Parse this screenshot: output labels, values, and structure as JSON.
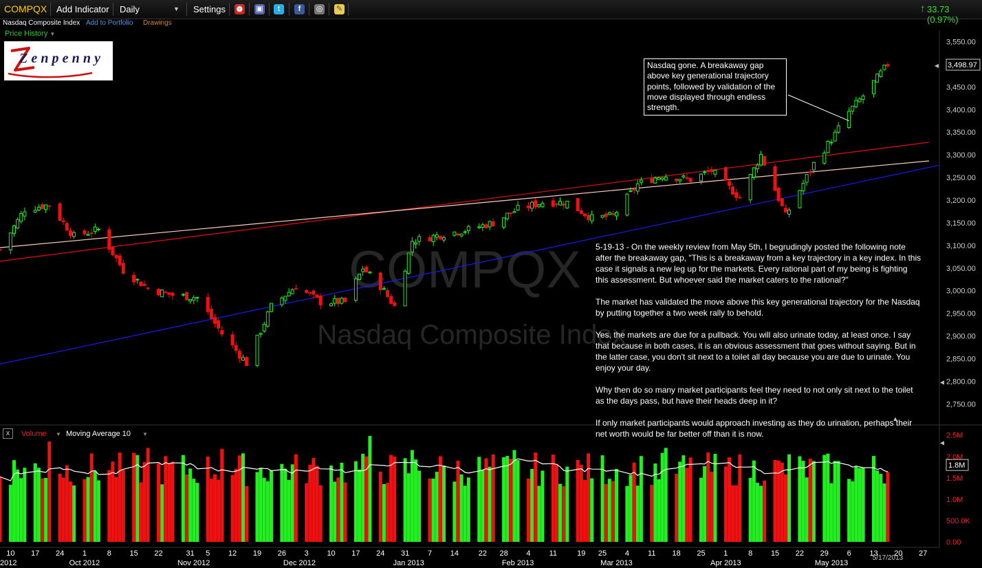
{
  "toolbar": {
    "symbol": "COMPQX",
    "add_indicator": "Add Indicator",
    "period": "Daily",
    "settings": "Settings",
    "change": "33.73 (0.97%)",
    "up_color": "#33dd33"
  },
  "symbol_bar": {
    "name": "Nasdaq Composite Index",
    "add_to_portfolio": "Add to Portfolio",
    "drawings": "Drawings",
    "price_history": "Price History"
  },
  "logo": {
    "text": "Zenpenny"
  },
  "watermark": {
    "symbol": "COMPQX",
    "name": "Nasdaq Composite Index"
  },
  "price_note": "Nasdaq gone. A breakaway gap above key generational trajectory points, followed by validation of the move displayed through endless strength.",
  "commentary": [
    "5-19-13 - On the weekly review from May 5th, I begrudingly posted the following note after the breakaway gap, \"This is a breakaway from a key trajectory in a key index. In this case it signals a new leg up for the markets. Every rational part of my being is fighting this assessment. But whoever said the market caters to the rational?\"",
    "The market has validated the move above this key generational trajectory for the Nasdaq by putting together a two week rally to behold.",
    "Yes, the markets are due for a pullback. You will also urinate today, at least once. I say that because in both cases, it is an obvious assessment that goes without saying. But in the latter case, you don't sit next to a toilet all day because you are due to urinate. You enjoy your day.",
    "Why then do so many market participants feel they need to not only sit next to the toilet as the days pass, but have their heads deep in it?",
    "If only market participants would approach investing as they do urination, perhaps their net worth would be far better off than it is now."
  ],
  "volume_header": {
    "close_label": "x",
    "volume_label": "Volume",
    "ma_label": "Moving Average 10"
  },
  "colors": {
    "up": "#22ee22",
    "down": "#ee1111",
    "trend_red": "#dd1111",
    "trend_pink": "#ffd0c0",
    "trend_blue": "#1a1aee",
    "axis_text": "#cccccc"
  },
  "chart_data": [
    {
      "type": "candlestick",
      "title": "COMPQX",
      "series_name": "Nasdaq Composite Index",
      "period": "Daily",
      "ylim": [
        2705,
        3575
      ],
      "y_ticks": [
        2750,
        2800,
        2850,
        2900,
        2950,
        3000,
        3050,
        3100,
        3150,
        3200,
        3250,
        3300,
        3350,
        3400,
        3450,
        3500,
        3550
      ],
      "y_tick_labels": [
        "2,750.00",
        "2,800.00",
        "2,850.00",
        "2,900.00",
        "2,950.00",
        "3,000.00",
        "3,050.00",
        "3,100.00",
        "3,150.00",
        "3,200.00",
        "3,250.00",
        "3,300.00",
        "3,350.00",
        "3,400.00",
        "3,450.00",
        "",
        "3,550.00"
      ],
      "last_price_label": "3,498.97",
      "last_price": 3498.97,
      "date_range": [
        "2012-09-07",
        "2013-05-17"
      ],
      "last_date_label": "5/17/2013",
      "x_axis": {
        "day_labels": [
          "10",
          "17",
          "24",
          "1",
          "8",
          "15",
          "22",
          "31",
          "5",
          "12",
          "19",
          "26",
          "3",
          "10",
          "17",
          "24",
          "31",
          "7",
          "14",
          "22",
          "28",
          "4",
          "11",
          "19",
          "25",
          "4",
          "11",
          "18",
          "25",
          "1",
          "8",
          "15",
          "22",
          "29",
          "6",
          "13",
          "20",
          "27"
        ],
        "day_dates": [
          "2012-09-10",
          "2012-09-17",
          "2012-09-24",
          "2012-10-01",
          "2012-10-08",
          "2012-10-15",
          "2012-10-22",
          "2012-10-31",
          "2012-11-05",
          "2012-11-12",
          "2012-11-19",
          "2012-11-26",
          "2012-12-03",
          "2012-12-10",
          "2012-12-17",
          "2012-12-24",
          "2012-12-31",
          "2013-01-07",
          "2013-01-14",
          "2013-01-22",
          "2013-01-28",
          "2013-02-04",
          "2013-02-11",
          "2013-02-19",
          "2013-02-25",
          "2013-03-04",
          "2013-03-11",
          "2013-03-18",
          "2013-03-25",
          "2013-04-01",
          "2013-04-08",
          "2013-04-15",
          "2013-04-22",
          "2013-04-29",
          "2013-05-06",
          "2013-05-13",
          "2013-05-20",
          "2013-05-27"
        ],
        "month_labels": [
          "2012",
          "Oct 2012",
          "Nov 2012",
          "Dec 2012",
          "Jan 2013",
          "Feb 2013",
          "Mar 2013",
          "Apr 2013",
          "May 2013"
        ],
        "month_dates": [
          "2012-09-07",
          "2012-10-01",
          "2012-11-01",
          "2012-12-01",
          "2013-01-01",
          "2013-02-01",
          "2013-03-01",
          "2013-04-01",
          "2013-05-01"
        ]
      },
      "trendlines": [
        {
          "name": "red",
          "color": "#dd1111",
          "points": [
            [
              "2012-09-07",
              3065
            ],
            [
              "2013-05-17",
              3316
            ]
          ]
        },
        {
          "name": "pink",
          "color": "#ffd0c0",
          "points": [
            [
              "2012-09-07",
              3095
            ],
            [
              "2013-05-17",
              3278
            ]
          ]
        },
        {
          "name": "blue",
          "color": "#1a1aee",
          "points": [
            [
              "2012-09-07",
              2838
            ],
            [
              "2013-05-17",
              3253
            ]
          ]
        }
      ],
      "anchors": [
        [
          "2012-09-07",
          3090
        ],
        [
          "2012-09-14",
          3180
        ],
        [
          "2012-09-21",
          3190
        ],
        [
          "2012-09-28",
          3120
        ],
        [
          "2012-10-05",
          3135
        ],
        [
          "2012-10-12",
          3045
        ],
        [
          "2012-10-19",
          3005
        ],
        [
          "2012-10-26",
          2990
        ],
        [
          "2012-11-02",
          2985
        ],
        [
          "2012-11-09",
          2905
        ],
        [
          "2012-11-16",
          2840
        ],
        [
          "2012-11-23",
          2965
        ],
        [
          "2012-11-30",
          3010
        ],
        [
          "2012-12-07",
          2975
        ],
        [
          "2012-12-14",
          2975
        ],
        [
          "2012-12-19",
          3050
        ],
        [
          "2012-12-24",
          3010
        ],
        [
          "2012-12-28",
          2965
        ],
        [
          "2013-01-02",
          3110
        ],
        [
          "2013-01-11",
          3125
        ],
        [
          "2013-01-18",
          3135
        ],
        [
          "2013-01-25",
          3150
        ],
        [
          "2013-02-01",
          3180
        ],
        [
          "2013-02-08",
          3195
        ],
        [
          "2013-02-15",
          3195
        ],
        [
          "2013-02-22",
          3160
        ],
        [
          "2013-02-28",
          3165
        ],
        [
          "2013-03-07",
          3235
        ],
        [
          "2013-03-14",
          3255
        ],
        [
          "2013-03-22",
          3245
        ],
        [
          "2013-03-28",
          3265
        ],
        [
          "2013-04-05",
          3205
        ],
        [
          "2013-04-11",
          3300
        ],
        [
          "2013-04-18",
          3165
        ],
        [
          "2013-04-26",
          3280
        ],
        [
          "2013-05-02",
          3345
        ],
        [
          "2013-05-06",
          3395
        ],
        [
          "2013-05-10",
          3430
        ],
        [
          "2013-05-17",
          3500
        ]
      ],
      "annotation": {
        "text_ref": "price_note",
        "points_to": [
          "2013-05-06",
          3375
        ]
      },
      "notes": "Individual daily candles are interpolated from the weekly anchor closes read off the axis; the anchors are the data."
    },
    {
      "type": "bar",
      "title": "Volume",
      "ylim": [
        0,
        2600000
      ],
      "y_ticks": [
        0,
        500000,
        1000000,
        1500000,
        2000000,
        2500000
      ],
      "y_tick_labels": [
        "0.00",
        "500.0K",
        "1.0M",
        "1.5M",
        "2.0M",
        "2.5M"
      ],
      "last_value_label": "1.8M",
      "moving_average": {
        "name": "Moving Average 10",
        "period": 10,
        "color": "#ffffff",
        "last_value": 1800000
      },
      "typical_range": [
        1500000,
        2000000
      ],
      "spikes": [
        [
          "2012-09-21",
          2350000
        ],
        [
          "2012-10-19",
          2200000
        ],
        [
          "2012-11-09",
          2180000
        ],
        [
          "2012-12-21",
          2480000
        ],
        [
          "2013-01-02",
          2150000
        ],
        [
          "2013-01-31",
          2150000
        ],
        [
          "2013-03-15",
          2200000
        ],
        [
          "2013-04-19",
          2050000
        ]
      ],
      "notes": "Daily volume bars coloured by the day's candle direction; values between spikes vary within typical_range."
    }
  ]
}
